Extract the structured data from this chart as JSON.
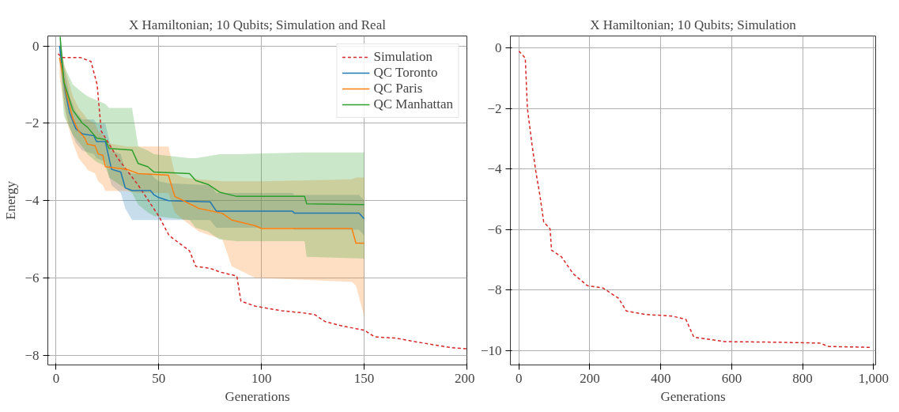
{
  "chart_data": [
    {
      "type": "line",
      "title": "X Hamiltonian; 10 Qubits; Simulation and Real",
      "xlabel": "Generations",
      "ylabel": "Energy",
      "xlim": [
        -4,
        200
      ],
      "ylim": [
        -8.25,
        0.26
      ],
      "xticks": [
        0,
        50,
        100,
        150,
        200
      ],
      "yticks": [
        0,
        -2,
        -4,
        -6,
        -8
      ],
      "grid": true,
      "legend": "top right",
      "series": [
        {
          "name": "Simulation",
          "color": "#d62728",
          "line_style": "dashed",
          "x": [
            1,
            3,
            12,
            17,
            20,
            22,
            30,
            40,
            50,
            55,
            60,
            65,
            68,
            75,
            80,
            88,
            90,
            97,
            110,
            120,
            126,
            131,
            140,
            150,
            155,
            166,
            175,
            192,
            200
          ],
          "values": [
            -0.2,
            -0.3,
            -0.3,
            -0.4,
            -1.0,
            -2.2,
            -2.9,
            -3.6,
            -4.4,
            -4.9,
            -5.1,
            -5.3,
            -5.7,
            -5.75,
            -5.85,
            -5.95,
            -6.6,
            -6.73,
            -6.85,
            -6.9,
            -6.95,
            -7.13,
            -7.25,
            -7.35,
            -7.52,
            -7.56,
            -7.65,
            -7.8,
            -7.83
          ]
        },
        {
          "name": "QC Toronto",
          "color": "#1f77b4",
          "x": [
            1.7,
            4.4,
            6.6,
            9.6,
            12.7,
            18.4,
            19.7,
            24,
            27,
            31.5,
            33.7,
            37,
            46,
            47.7,
            50,
            54.7,
            75,
            78,
            115,
            116,
            147.5,
            150
          ],
          "values": [
            0,
            -1.15,
            -1.73,
            -2.14,
            -2.27,
            -2.32,
            -2.47,
            -2.47,
            -3.19,
            -3.26,
            -3.67,
            -3.74,
            -3.74,
            -3.85,
            -3.92,
            -4.0,
            -4.03,
            -4.27,
            -4.27,
            -4.32,
            -4.32,
            -4.47
          ],
          "lower": [
            -0.4,
            -1.6,
            -2.1,
            -2.5,
            -2.7,
            -2.8,
            -2.9,
            -3.0,
            -3.6,
            -3.8,
            -4.2,
            -4.5,
            -4.5,
            -4.5,
            -4.5,
            -4.5,
            -4.5,
            -4.7,
            -4.7,
            -4.75,
            -4.75,
            -4.9
          ],
          "upper": [
            0.2,
            -0.7,
            -1.3,
            -1.7,
            -1.9,
            -1.9,
            -2.0,
            -2.0,
            -2.7,
            -2.8,
            -3.2,
            -3.3,
            -3.3,
            -3.4,
            -3.5,
            -3.55,
            -3.6,
            -3.8,
            -3.8,
            -3.85,
            -3.85,
            -4.0
          ]
        },
        {
          "name": "QC Paris",
          "color": "#ff7f0e",
          "x": [
            1.7,
            5,
            8.2,
            11,
            14,
            15.3,
            19,
            20.5,
            22.8,
            24,
            34.5,
            40,
            54.7,
            57.8,
            62,
            69.5,
            81,
            85.5,
            97,
            100,
            144,
            146,
            150
          ],
          "values": [
            -0.3,
            -1.22,
            -1.88,
            -2.2,
            -2.38,
            -2.54,
            -2.58,
            -2.79,
            -2.83,
            -3.12,
            -3.19,
            -3.3,
            -3.34,
            -3.89,
            -4.0,
            -4.2,
            -4.33,
            -4.5,
            -4.65,
            -4.72,
            -4.72,
            -5.1,
            -5.1
          ],
          "lower": [
            -0.8,
            -1.9,
            -2.5,
            -2.9,
            -3.1,
            -3.2,
            -3.3,
            -3.5,
            -3.6,
            -3.75,
            -3.75,
            -3.8,
            -3.8,
            -4.3,
            -4.5,
            -4.8,
            -5.0,
            -5.7,
            -6.0,
            -6.0,
            -6.1,
            -6.2,
            -7.0
          ],
          "upper": [
            0.1,
            -0.7,
            -1.3,
            -1.6,
            -1.8,
            -1.9,
            -2.0,
            -2.2,
            -2.3,
            -2.5,
            -2.6,
            -2.6,
            -2.6,
            -3.3,
            -3.4,
            -3.45,
            -3.5,
            -3.5,
            -3.5,
            -3.5,
            -3.45,
            -3.4,
            -3.4
          ]
        },
        {
          "name": "QC Manhattan",
          "color": "#2ca02c",
          "x": [
            2,
            3.8,
            8.2,
            12.7,
            15.3,
            19.7,
            24,
            25.8,
            37,
            40,
            44.6,
            47.7,
            65,
            68,
            74,
            79.6,
            88,
            121,
            122,
            150
          ],
          "values": [
            0.24,
            -0.93,
            -1.66,
            -1.99,
            -2.1,
            -2.38,
            -2.42,
            -2.65,
            -2.69,
            -3.04,
            -3.12,
            -3.26,
            -3.3,
            -3.48,
            -3.58,
            -3.78,
            -3.89,
            -3.89,
            -4.08,
            -4.1
          ],
          "lower": [
            -0.3,
            -1.8,
            -2.3,
            -2.6,
            -2.8,
            -3.0,
            -3.1,
            -3.4,
            -3.8,
            -4.1,
            -4.3,
            -4.4,
            -4.5,
            -4.7,
            -4.8,
            -5.0,
            -5.05,
            -5.05,
            -5.45,
            -5.5
          ],
          "upper": [
            0.26,
            -0.5,
            -1.0,
            -1.2,
            -1.3,
            -1.4,
            -1.5,
            -1.6,
            -1.6,
            -2.6,
            -2.7,
            -2.8,
            -2.9,
            -2.9,
            -2.85,
            -2.8,
            -2.8,
            -2.75,
            -2.75,
            -2.75
          ]
        }
      ]
    },
    {
      "type": "line",
      "title": "X Hamiltonian; 10 Qubits; Simulation",
      "xlabel": "Generations",
      "xlim": [
        -24,
        1006
      ],
      "ylim": [
        -10.47,
        0.39
      ],
      "xticks": [
        0,
        200,
        400,
        600,
        800,
        {
          "value": 1000,
          "label": "1,000"
        }
      ],
      "yticks": [
        0,
        -2,
        -4,
        -6,
        -8,
        -10
      ],
      "grid": true,
      "legend": false,
      "series": [
        {
          "color": "#d62728",
          "line_style": "dashed",
          "x": [
            0,
            18,
            24,
            37,
            48,
            59,
            70,
            88,
            92,
            120,
            153,
            193,
            237,
            281,
            303,
            355,
            434,
            471,
            493,
            544,
            581,
            735,
            849,
            873,
            991
          ],
          "values": [
            -0.11,
            -0.34,
            -2.0,
            -3.2,
            -4.1,
            -4.85,
            -5.75,
            -5.98,
            -6.68,
            -6.9,
            -7.46,
            -7.85,
            -7.93,
            -8.27,
            -8.69,
            -8.8,
            -8.86,
            -8.97,
            -9.55,
            -9.64,
            -9.7,
            -9.72,
            -9.75,
            -9.86,
            -9.89
          ]
        }
      ]
    }
  ]
}
